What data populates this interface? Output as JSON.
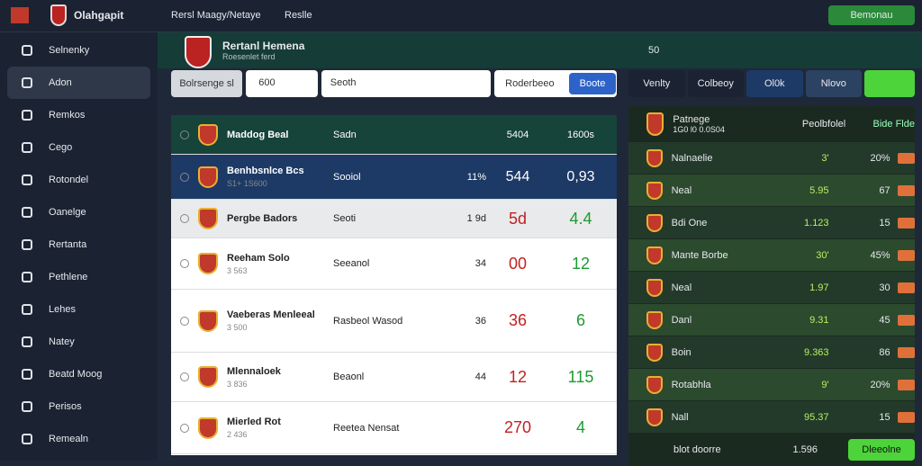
{
  "topbar": {
    "brand": "Olahgapit",
    "breadcrumb": [
      "Rersl Maagy/Netaye",
      "Reslle"
    ],
    "button": "Bemonau"
  },
  "sidebar": {
    "items": [
      "Selnenky",
      "Adon",
      "Remkos",
      "Cego",
      "Rotondel",
      "Oanelge",
      "Rertanta",
      "Pethlene",
      "Lehes",
      "Natey",
      "Beatd Moog",
      "Perisos",
      "Remealn"
    ]
  },
  "header": {
    "title": "Rertanl Hemena",
    "subtitle": "Roesenlet ferd",
    "stat": "50"
  },
  "filters": {
    "select": "Bolrsenge sl",
    "input": "600",
    "search": "Seoth",
    "tab": "Roderbeeo",
    "button": "Boote"
  },
  "matches": [
    {
      "name": "Maddog Beal",
      "sub": "",
      "team": "Sadn",
      "trend": "",
      "score": "5404",
      "value": "1600s"
    },
    {
      "name": "Benhbsnlce Bcs",
      "sub": "S1+ 1S600",
      "team": "Sooiol",
      "trend": "11%",
      "score": "544",
      "value": "0,93"
    },
    {
      "name": "Pergbe Badors",
      "sub": "",
      "team": "Seoti",
      "trend": "1 9d",
      "score": "5d",
      "value": "4.4"
    },
    {
      "name": "Reeham Solo",
      "sub": "3 563",
      "team": "Seeanol",
      "trend": "34",
      "score": "00",
      "value": "12"
    },
    {
      "name": "Vaeberas Menleeal",
      "sub": "3 500",
      "team": "Rasbeol Wasod",
      "trend": "36",
      "score": "36",
      "value": "6"
    },
    {
      "name": "Mlennaloek",
      "sub": "3 836",
      "team": "Beaonl",
      "trend": "44",
      "score": "12",
      "value": "115"
    },
    {
      "name": "Mierled Rot",
      "sub": "2 436",
      "team": "Reetea Nensat",
      "trend": "",
      "score": "270",
      "value": "4"
    }
  ],
  "side": {
    "tabs": [
      "Venlty",
      "Colbeoy",
      "Ol0k",
      "Nlovo"
    ],
    "head": {
      "title": "Patnege",
      "sub": "1G0 l0 0.0S04",
      "col1": "Peolbfolel",
      "col2": "Bide Flde"
    },
    "rows": [
      {
        "name": "Nalnaelie",
        "v1": "3'",
        "v2": "20%"
      },
      {
        "name": "Neal",
        "v1": "5.95",
        "v2": "67"
      },
      {
        "name": "Bdi One",
        "v1": "1.123",
        "v2": "15"
      },
      {
        "name": "Mante Borbe",
        "v1": "30'",
        "v2": "45%"
      },
      {
        "name": "Neal",
        "v1": "1.97",
        "v2": "30"
      },
      {
        "name": "Danl",
        "v1": "9.31",
        "v2": "45"
      },
      {
        "name": "Boin",
        "v1": "9.363",
        "v2": "86"
      },
      {
        "name": "Rotabhla",
        "v1": "9'",
        "v2": "20%"
      },
      {
        "name": "Nall",
        "v1": "95.37",
        "v2": "15"
      }
    ],
    "footer": {
      "label": "blot doorre",
      "value": "1.596",
      "button": "Dleeolne"
    }
  }
}
